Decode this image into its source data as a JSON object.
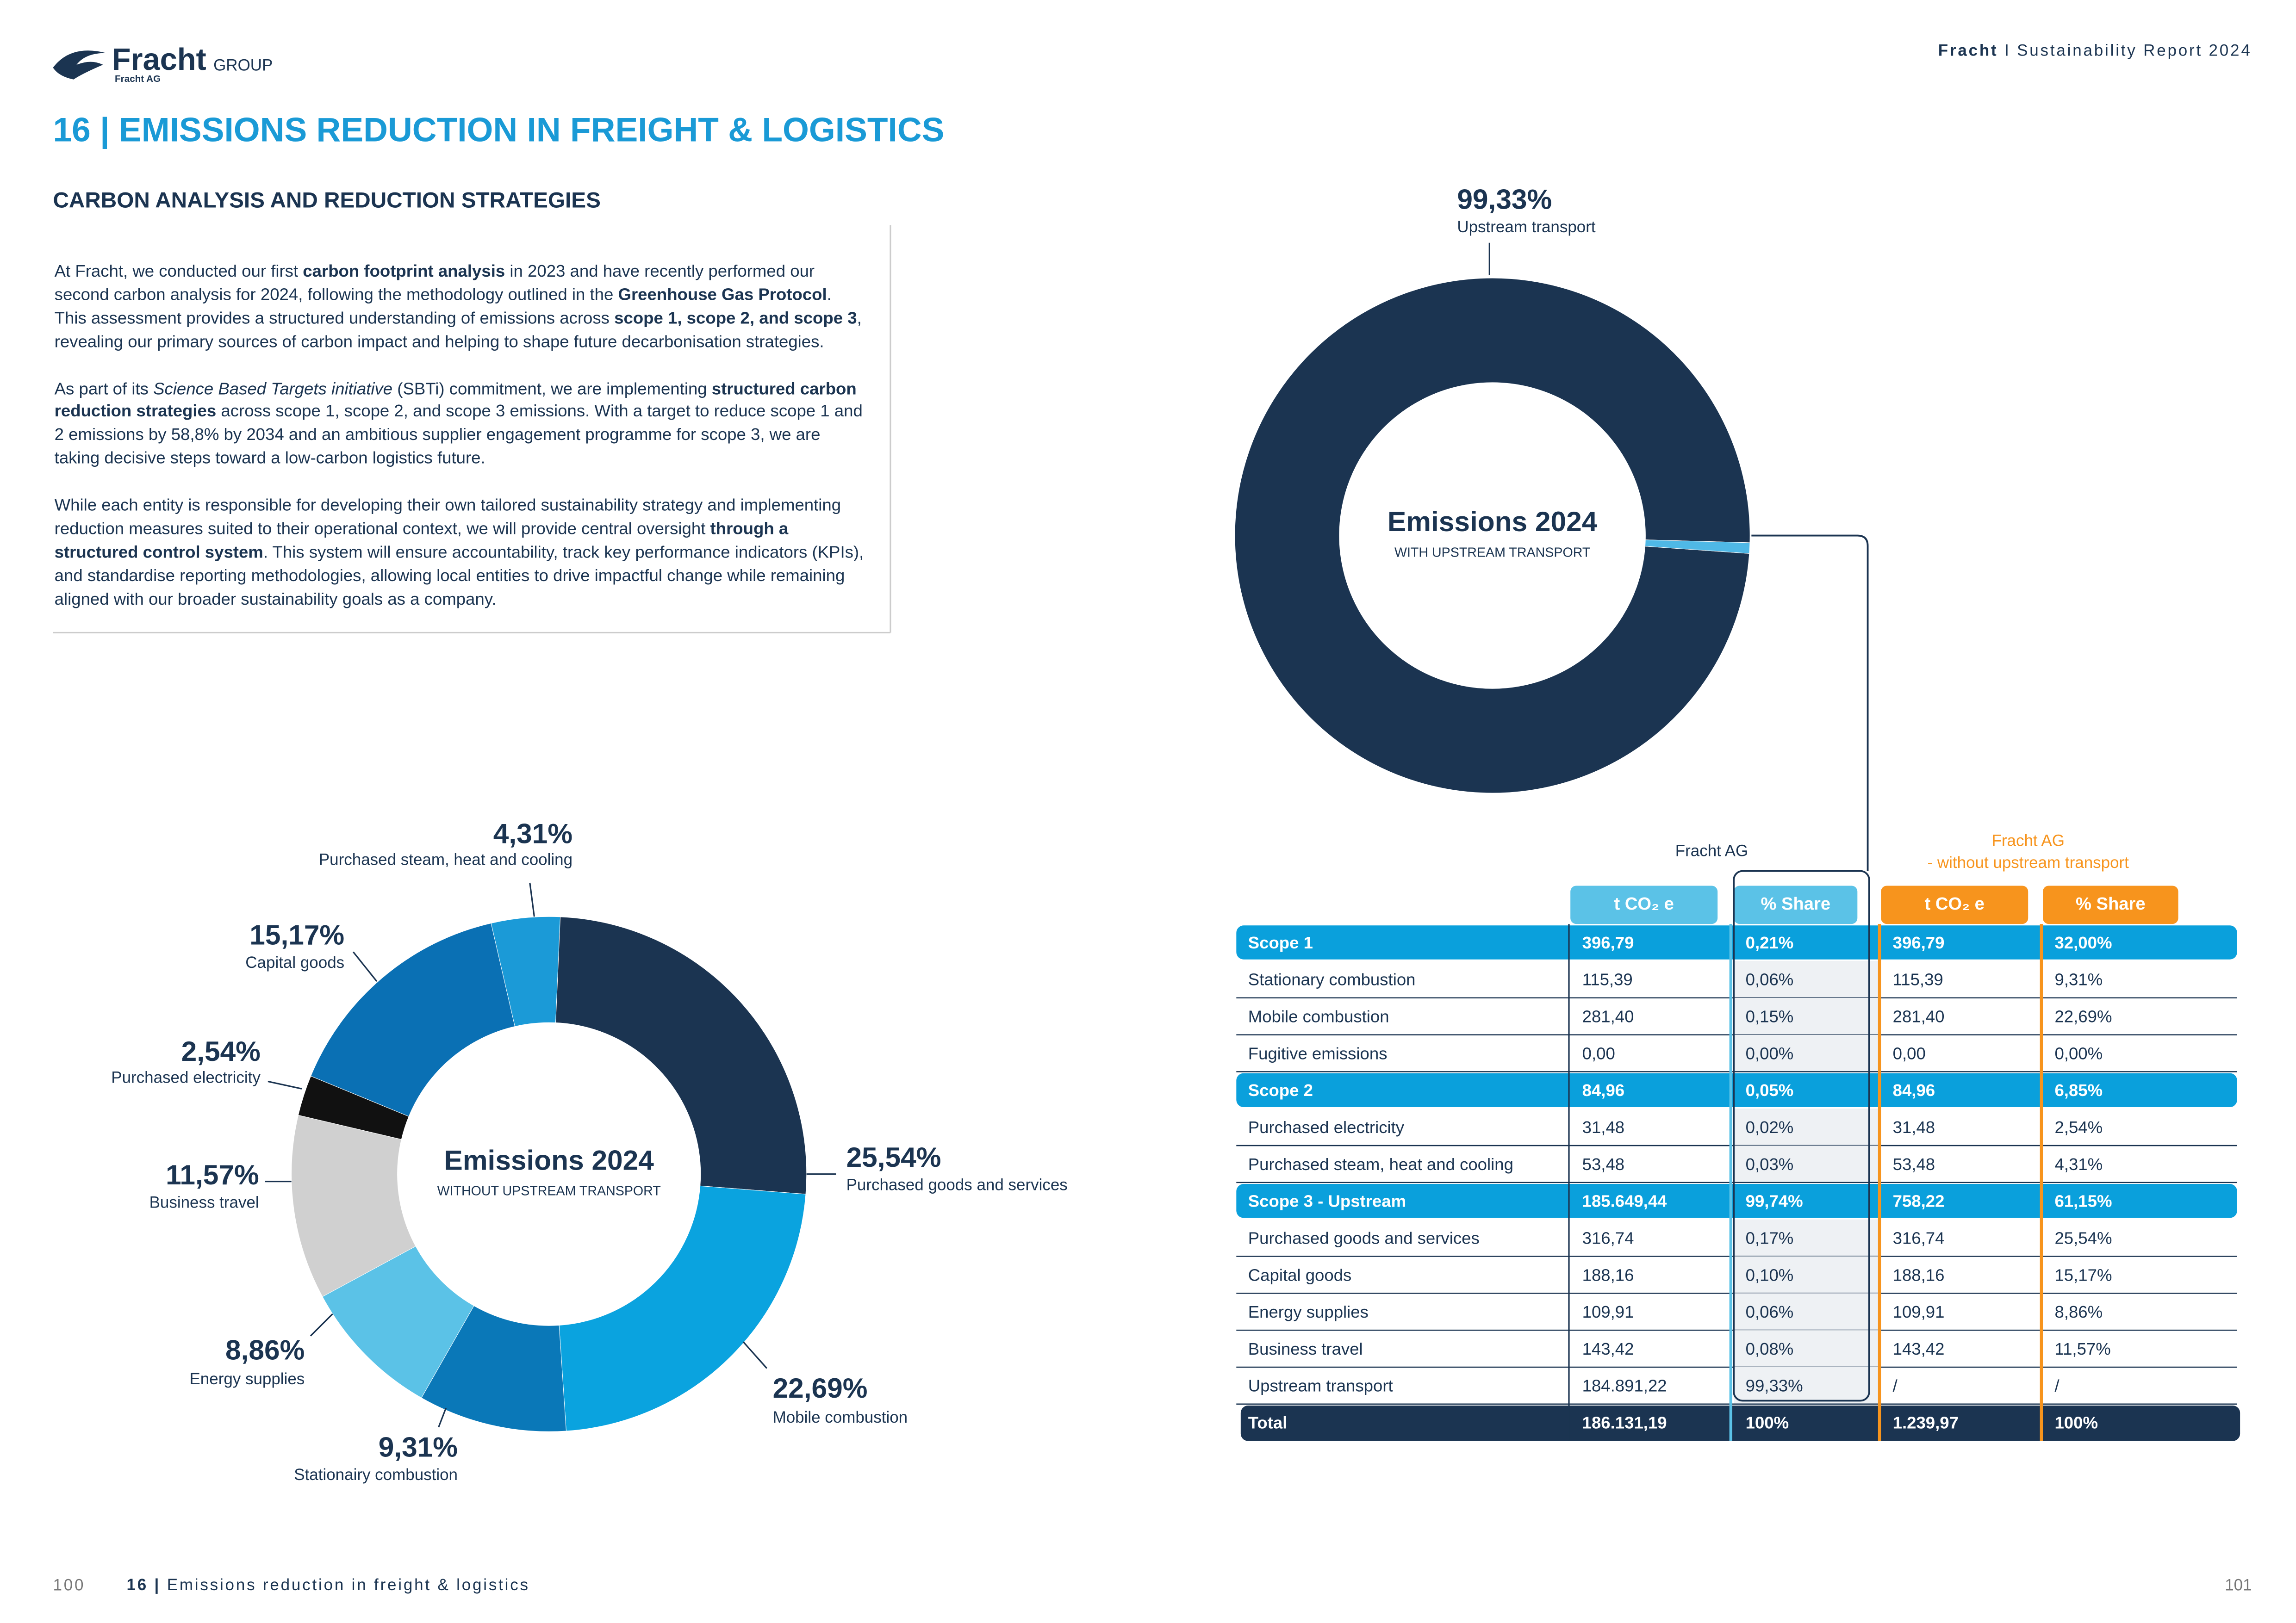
{
  "header": {
    "logo": "Fracht",
    "logo_group": "GROUP",
    "logo_sub": "Fracht AG",
    "report_brand": "Fracht",
    "report_title": "I Sustainability Report 2024"
  },
  "title": "16 | EMISSIONS REDUCTION IN FREIGHT & LOGISTICS",
  "section": {
    "heading": "CARBON ANALYSIS AND REDUCTION STRATEGIES",
    "paragraphs": [
      [
        {
          "text": "At Fracht, we conducted our first ",
          "style": "normal"
        },
        {
          "text": "carbon footprint analysis",
          "style": "bold"
        },
        {
          "text": " in 2023 and have recently performed our second carbon analysis for 2024, following the methodology outlined in the ",
          "style": "normal"
        },
        {
          "text": "Greenhouse Gas Protocol",
          "style": "bold"
        },
        {
          "text": ". This assessment provides a structured understanding of emissions across ",
          "style": "normal"
        },
        {
          "text": "scope 1, scope 2, and scope 3",
          "style": "bold"
        },
        {
          "text": ", revealing our primary sources of carbon impact and helping to shape future decarbonisation strategies.",
          "style": "normal"
        }
      ],
      [
        {
          "text": "As part of its ",
          "style": "normal"
        },
        {
          "text": "Science Based Targets initiative",
          "style": "italic"
        },
        {
          "text": " (SBTi) commitment, we are implementing ",
          "style": "normal"
        },
        {
          "text": "structured carbon reduction strategies",
          "style": "bold"
        },
        {
          "text": " across scope 1, scope 2, and scope 3 emissions. With a target to reduce scope 1 and 2 emissions by 58,8% by 2034 and an ambitious supplier engagement programme for scope 3, we are taking decisive steps toward a low-carbon logistics future.",
          "style": "normal"
        }
      ],
      [
        {
          "text": "While each entity is responsible for developing their own tailored sustainability strategy and implementing reduction measures suited to their operational context, we will provide central oversight ",
          "style": "normal"
        },
        {
          "text": "through a structured control system",
          "style": "bold"
        },
        {
          "text": ". This system will ensure accountability, track key performance indicators (KPIs), and standardise reporting methodologies, allowing local entities to drive impactful change while remaining aligned with our broader sustainability goals as a company.",
          "style": "normal"
        }
      ]
    ]
  },
  "chart_data": [
    {
      "type": "pie",
      "title": "Emissions 2024",
      "subtitle": "WITH UPSTREAM TRANSPORT",
      "categories": [
        "Upstream transport",
        null
      ],
      "values": [
        99.33,
        0.67
      ],
      "value_labels": [
        "99,33%",
        null
      ],
      "colors": [
        "#1b3451",
        "#4fb8e6"
      ]
    },
    {
      "type": "pie",
      "title": "Emissions 2024",
      "subtitle": "WITHOUT UPSTREAM TRANSPORT",
      "categories": [
        "Purchased steam, heat and cooling",
        "Purchased goods and services",
        "Mobile combustion",
        "Stationairy combustion",
        "Energy supplies",
        "Business travel",
        "Purchased electricity",
        "Capital goods"
      ],
      "values": [
        4.31,
        25.54,
        22.69,
        9.31,
        8.86,
        11.57,
        2.54,
        15.17
      ],
      "value_labels": [
        "4,31%",
        "25,54%",
        "22,69%",
        "9,31%",
        "8,86%",
        "11,57%",
        "2,54%",
        "15,17%"
      ],
      "colors": [
        "#1b9ad7",
        "#1b3451",
        "#0aa3df",
        "#0a78b8",
        "#5bc2e7",
        "#d0d0d0",
        "#111111",
        "#0a70b4"
      ]
    }
  ],
  "table": {
    "group_headers": [
      [
        "Fracht AG"
      ],
      [
        "Fracht AG",
        "- without upstream transport"
      ]
    ],
    "columns": [
      "t CO₂ e",
      "% Share",
      "t CO₂ e",
      "% Share"
    ],
    "groups": [
      {
        "row": [
          "Scope 1",
          "396,79",
          "0,21%",
          "396,79",
          "32,00%"
        ],
        "items": [
          [
            "Stationary combustion",
            "115,39",
            "0,06%",
            "115,39",
            "9,31%"
          ],
          [
            "Mobile combustion",
            "281,40",
            "0,15%",
            "281,40",
            "22,69%"
          ],
          [
            "Fugitive emissions",
            "0,00",
            "0,00%",
            "0,00",
            "0,00%"
          ]
        ]
      },
      {
        "row": [
          "Scope 2",
          "84,96",
          "0,05%",
          "84,96",
          "6,85%"
        ],
        "items": [
          [
            "Purchased electricity",
            "31,48",
            "0,02%",
            "31,48",
            "2,54%"
          ],
          [
            "Purchased steam, heat and cooling",
            "53,48",
            "0,03%",
            "53,48",
            "4,31%"
          ]
        ]
      },
      {
        "row": [
          "Scope 3 - Upstream",
          "185.649,44",
          "99,74%",
          "758,22",
          "61,15%"
        ],
        "items": [
          [
            "Purchased goods and services",
            "316,74",
            "0,17%",
            "316,74",
            "25,54%"
          ],
          [
            "Capital goods",
            "188,16",
            "0,10%",
            "188,16",
            "15,17%"
          ],
          [
            "Energy supplies",
            "109,91",
            "0,06%",
            "109,91",
            "8,86%"
          ],
          [
            "Business travel",
            "143,42",
            "0,08%",
            "143,42",
            "11,57%"
          ],
          [
            "Upstream transport",
            "184.891,22",
            "99,33%",
            "/",
            "/"
          ]
        ]
      }
    ],
    "total": [
      "Total",
      "186.131,19",
      "100%",
      "1.239,97",
      "100%"
    ]
  },
  "footer": {
    "left_page": "100",
    "chapter": "16 |",
    "chapter_title": "Emissions reduction in freight & logistics",
    "right_page": "101"
  }
}
